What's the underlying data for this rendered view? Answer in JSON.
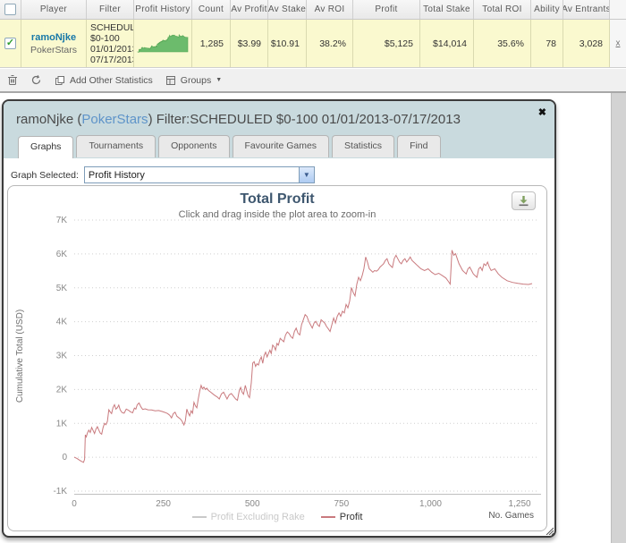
{
  "icons": {
    "caret_down": "▼",
    "check": "✓",
    "close": "✖",
    "select_arrow": "▼"
  },
  "table": {
    "headers": [
      "Player",
      "Filter",
      "Profit History",
      "Count",
      "Av Profit",
      "Av Stake",
      "Av ROI",
      "Profit",
      "Total Stake",
      "Total ROI",
      "Ability",
      "Av Entrants"
    ],
    "row": {
      "player_name": "ramoNjke",
      "player_site": "PokerStars",
      "filter_lines": {
        "l1": "SCHEDULED",
        "l2": "$0-100",
        "l3": "01/01/2013-",
        "l4": "07/17/2013"
      },
      "count": "1,285",
      "av_profit": "$3.99",
      "av_stake": "$10.91",
      "av_roi": "38.2%",
      "profit": "$5,125",
      "total_stake": "$14,014",
      "total_roi": "35.6%",
      "ability": "78",
      "av_entrants": "3,028",
      "remove_label": "x"
    }
  },
  "toolbar": {
    "add_other_statistics_label": "Add Other Statistics",
    "groups_label": "Groups"
  },
  "dialog": {
    "title_pre": "ramoNjke (",
    "title_link": "PokerStars",
    "title_post": ") Filter:SCHEDULED $0-100 01/01/2013-07/17/2013",
    "tabs": [
      {
        "label": "Graphs",
        "active": true
      },
      {
        "label": "Tournaments",
        "active": false
      },
      {
        "label": "Opponents",
        "active": false
      },
      {
        "label": "Favourite Games",
        "active": false
      },
      {
        "label": "Statistics",
        "active": false
      },
      {
        "label": "Find",
        "active": false
      }
    ],
    "graph_selected_label": "Graph Selected:",
    "graph_selected_value": "Profit History"
  },
  "chart_data": {
    "type": "line",
    "title": "Total Profit",
    "subtitle": "Click and drag inside the plot area to zoom-in",
    "xlabel": "No. Games",
    "ylabel": "Cumulative Total (USD)",
    "xlim": [
      0,
      1300
    ],
    "ylim": [
      -1000,
      7000
    ],
    "grid": "dotted-horizontal",
    "legend_position": "bottom",
    "x_ticks": [
      {
        "v": 0,
        "label": "0"
      },
      {
        "v": 250,
        "label": "250"
      },
      {
        "v": 500,
        "label": "500"
      },
      {
        "v": 750,
        "label": "750"
      },
      {
        "v": 1000,
        "label": "1,000"
      },
      {
        "v": 1250,
        "label": "1,250"
      }
    ],
    "y_ticks": [
      {
        "v": -1000,
        "label": "-1K"
      },
      {
        "v": 0,
        "label": "0"
      },
      {
        "v": 1000,
        "label": "1K"
      },
      {
        "v": 2000,
        "label": "2K"
      },
      {
        "v": 3000,
        "label": "3K"
      },
      {
        "v": 4000,
        "label": "4K"
      },
      {
        "v": 5000,
        "label": "5K"
      },
      {
        "v": 6000,
        "label": "6K"
      },
      {
        "v": 7000,
        "label": "7K"
      }
    ],
    "series": [
      {
        "name": "Profit Excluding Rake",
        "color": "#c9c9c9",
        "visible": false,
        "points": []
      },
      {
        "name": "Profit",
        "color": "#c97a7e",
        "visible": true,
        "points": [
          [
            0,
            0
          ],
          [
            8,
            -40
          ],
          [
            14,
            -80
          ],
          [
            20,
            -120
          ],
          [
            26,
            -150
          ],
          [
            29,
            -60
          ],
          [
            31,
            660
          ],
          [
            34,
            600
          ],
          [
            37,
            710
          ],
          [
            41,
            800
          ],
          [
            45,
            730
          ],
          [
            49,
            880
          ],
          [
            53,
            790
          ],
          [
            57,
            700
          ],
          [
            61,
            830
          ],
          [
            65,
            900
          ],
          [
            69,
            800
          ],
          [
            73,
            710
          ],
          [
            77,
            680
          ],
          [
            81,
            880
          ],
          [
            85,
            1000
          ],
          [
            89,
            960
          ],
          [
            93,
            1060
          ],
          [
            97,
            1400
          ],
          [
            101,
            1340
          ],
          [
            105,
            1290
          ],
          [
            109,
            1470
          ],
          [
            113,
            1550
          ],
          [
            117,
            1420
          ],
          [
            121,
            1460
          ],
          [
            125,
            1540
          ],
          [
            129,
            1400
          ],
          [
            134,
            1320
          ],
          [
            140,
            1300
          ],
          [
            146,
            1420
          ],
          [
            152,
            1390
          ],
          [
            158,
            1340
          ],
          [
            164,
            1310
          ],
          [
            169,
            1450
          ],
          [
            173,
            1420
          ],
          [
            177,
            1550
          ],
          [
            182,
            1600
          ],
          [
            187,
            1490
          ],
          [
            192,
            1410
          ],
          [
            199,
            1430
          ],
          [
            207,
            1400
          ],
          [
            217,
            1395
          ],
          [
            227,
            1370
          ],
          [
            237,
            1380
          ],
          [
            247,
            1350
          ],
          [
            255,
            1320
          ],
          [
            262,
            1290
          ],
          [
            268,
            1240
          ],
          [
            273,
            1160
          ],
          [
            278,
            1290
          ],
          [
            283,
            1330
          ],
          [
            288,
            1210
          ],
          [
            293,
            1170
          ],
          [
            298,
            1130
          ],
          [
            303,
            1060
          ],
          [
            308,
            950
          ],
          [
            312,
            1080
          ],
          [
            316,
            1420
          ],
          [
            320,
            1300
          ],
          [
            324,
            1220
          ],
          [
            328,
            1370
          ],
          [
            332,
            1300
          ],
          [
            336,
            1620
          ],
          [
            340,
            1520
          ],
          [
            344,
            1460
          ],
          [
            348,
            1720
          ],
          [
            352,
            1950
          ],
          [
            356,
            2120
          ],
          [
            360,
            2020
          ],
          [
            364,
            2070
          ],
          [
            368,
            2000
          ],
          [
            372,
            2040
          ],
          [
            377,
            1970
          ],
          [
            383,
            1920
          ],
          [
            389,
            1870
          ],
          [
            395,
            1820
          ],
          [
            401,
            1780
          ],
          [
            407,
            1720
          ],
          [
            413,
            1870
          ],
          [
            419,
            1920
          ],
          [
            425,
            1800
          ],
          [
            429,
            1720
          ],
          [
            435,
            1840
          ],
          [
            441,
            1880
          ],
          [
            447,
            1800
          ],
          [
            453,
            1720
          ],
          [
            458,
            1680
          ],
          [
            463,
            1960
          ],
          [
            467,
            2060
          ],
          [
            471,
            1920
          ],
          [
            475,
            1860
          ],
          [
            480,
            2120
          ],
          [
            484,
            1960
          ],
          [
            488,
            1820
          ],
          [
            492,
            1760
          ],
          [
            497,
            2200
          ],
          [
            501,
            2780
          ],
          [
            505,
            2820
          ],
          [
            509,
            2680
          ],
          [
            513,
            2760
          ],
          [
            517,
            2720
          ],
          [
            521,
            2870
          ],
          [
            525,
            2960
          ],
          [
            529,
            2770
          ],
          [
            533,
            3010
          ],
          [
            537,
            3100
          ],
          [
            541,
            2960
          ],
          [
            545,
            3060
          ],
          [
            549,
            3160
          ],
          [
            553,
            3060
          ],
          [
            557,
            3310
          ],
          [
            561,
            3260
          ],
          [
            565,
            3160
          ],
          [
            569,
            3360
          ],
          [
            573,
            3310
          ],
          [
            578,
            3510
          ],
          [
            583,
            3460
          ],
          [
            588,
            3410
          ],
          [
            593,
            3610
          ],
          [
            598,
            3700
          ],
          [
            603,
            3650
          ],
          [
            608,
            3560
          ],
          [
            613,
            3510
          ],
          [
            618,
            3710
          ],
          [
            623,
            3810
          ],
          [
            628,
            3660
          ],
          [
            633,
            3610
          ],
          [
            638,
            3910
          ],
          [
            643,
            4060
          ],
          [
            648,
            4210
          ],
          [
            653,
            4160
          ],
          [
            658,
            4010
          ],
          [
            663,
            3910
          ],
          [
            668,
            3810
          ],
          [
            673,
            3960
          ],
          [
            678,
            4010
          ],
          [
            683,
            3910
          ],
          [
            688,
            3860
          ],
          [
            693,
            4060
          ],
          [
            698,
            4010
          ],
          [
            703,
            3960
          ],
          [
            708,
            3860
          ],
          [
            713,
            3790
          ],
          [
            718,
            3710
          ],
          [
            723,
            3910
          ],
          [
            728,
            4110
          ],
          [
            733,
            3960
          ],
          [
            738,
            4160
          ],
          [
            743,
            4260
          ],
          [
            748,
            4160
          ],
          [
            753,
            4310
          ],
          [
            758,
            4260
          ],
          [
            763,
            4510
          ],
          [
            768,
            4410
          ],
          [
            773,
            4610
          ],
          [
            778,
            5010
          ],
          [
            783,
            4860
          ],
          [
            788,
            4760
          ],
          [
            793,
            5110
          ],
          [
            798,
            5310
          ],
          [
            803,
            5210
          ],
          [
            808,
            5360
          ],
          [
            813,
            5560
          ],
          [
            818,
            5910
          ],
          [
            823,
            5760
          ],
          [
            828,
            5560
          ],
          [
            833,
            5510
          ],
          [
            838,
            5460
          ],
          [
            843,
            5510
          ],
          [
            848,
            5490
          ],
          [
            853,
            5530
          ],
          [
            858,
            5610
          ],
          [
            863,
            5660
          ],
          [
            868,
            5710
          ],
          [
            873,
            5810
          ],
          [
            878,
            5860
          ],
          [
            883,
            5710
          ],
          [
            888,
            5650
          ],
          [
            893,
            5600
          ],
          [
            898,
            5860
          ],
          [
            903,
            5960
          ],
          [
            908,
            5860
          ],
          [
            913,
            5760
          ],
          [
            918,
            5710
          ],
          [
            923,
            5810
          ],
          [
            928,
            5860
          ],
          [
            933,
            5760
          ],
          [
            938,
            5830
          ],
          [
            943,
            5910
          ],
          [
            948,
            5810
          ],
          [
            953,
            5760
          ],
          [
            958,
            5710
          ],
          [
            963,
            5660
          ],
          [
            968,
            5610
          ],
          [
            973,
            5560
          ],
          [
            983,
            5510
          ],
          [
            993,
            5560
          ],
          [
            1003,
            5460
          ],
          [
            1013,
            5390
          ],
          [
            1023,
            5430
          ],
          [
            1033,
            5360
          ],
          [
            1043,
            5290
          ],
          [
            1050,
            5190
          ],
          [
            1055,
            5110
          ],
          [
            1060,
            6110
          ],
          [
            1065,
            5960
          ],
          [
            1070,
            6010
          ],
          [
            1075,
            5860
          ],
          [
            1080,
            5710
          ],
          [
            1085,
            5610
          ],
          [
            1090,
            5510
          ],
          [
            1095,
            5460
          ],
          [
            1100,
            5410
          ],
          [
            1105,
            5560
          ],
          [
            1110,
            5610
          ],
          [
            1115,
            5510
          ],
          [
            1120,
            5410
          ],
          [
            1125,
            5360
          ],
          [
            1130,
            5310
          ],
          [
            1135,
            5560
          ],
          [
            1140,
            5610
          ],
          [
            1145,
            5510
          ],
          [
            1150,
            5710
          ],
          [
            1155,
            5660
          ],
          [
            1160,
            5760
          ],
          [
            1165,
            5610
          ],
          [
            1170,
            5510
          ],
          [
            1180,
            5560
          ],
          [
            1190,
            5410
          ],
          [
            1200,
            5310
          ],
          [
            1215,
            5210
          ],
          [
            1230,
            5160
          ],
          [
            1245,
            5130
          ],
          [
            1260,
            5110
          ],
          [
            1275,
            5100
          ],
          [
            1285,
            5125
          ]
        ]
      }
    ]
  },
  "colors": {
    "row_yellow": "#faf9cf",
    "dialog_header": "#c9dade",
    "link_blue": "#5f94c9",
    "player_blue": "#1878a8",
    "chart_title": "#3e576f",
    "profit_line": "#c97a7e",
    "sparkline_green": "#6cbb6c",
    "scroll_strip": "#d3d3d3"
  }
}
